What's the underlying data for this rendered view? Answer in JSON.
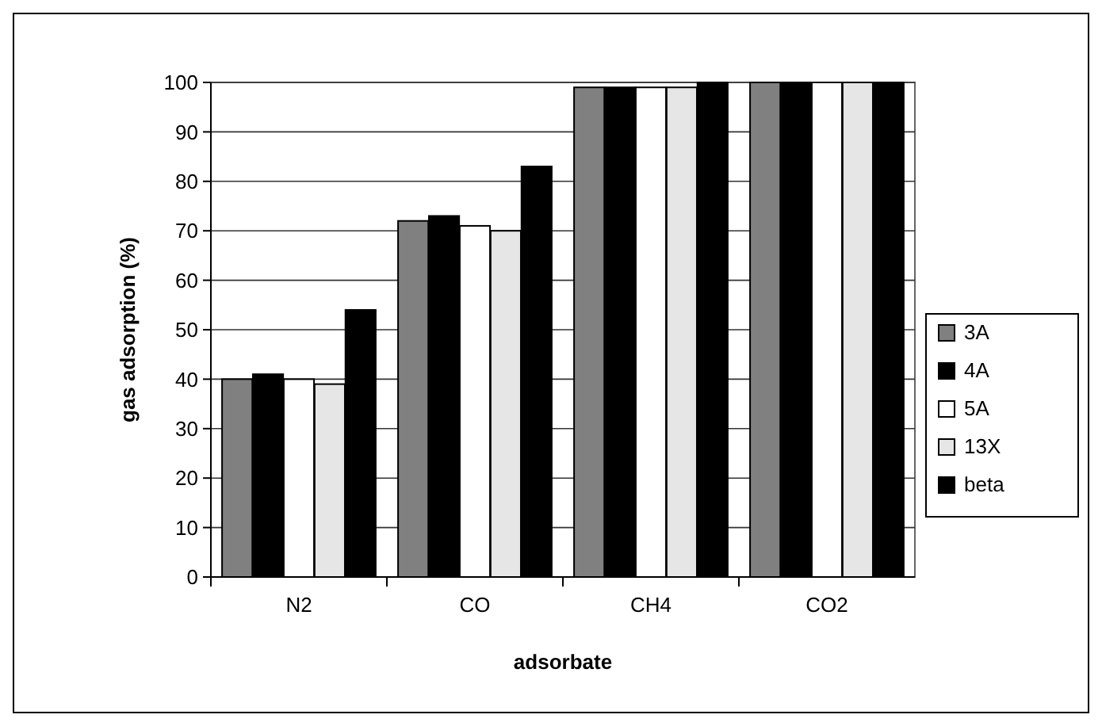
{
  "chart_data": {
    "type": "bar",
    "xlabel": "adsorbate",
    "ylabel": "gas adsorption (%)",
    "categories": [
      "N2",
      "CO",
      "CH4",
      "CO2"
    ],
    "series": [
      {
        "name": "3A",
        "color": "#808080",
        "values": [
          40,
          72,
          99,
          100
        ]
      },
      {
        "name": "4A",
        "color": "#000000",
        "values": [
          41,
          73,
          99,
          100
        ]
      },
      {
        "name": "5A",
        "color": "#ffffff",
        "values": [
          40,
          71,
          99,
          100
        ]
      },
      {
        "name": "13X",
        "color": "#e6e6e6",
        "values": [
          39,
          70,
          99,
          100
        ]
      },
      {
        "name": "beta",
        "color": "#000000",
        "values": [
          54,
          83,
          100,
          100
        ]
      }
    ],
    "ylim": [
      0,
      100
    ],
    "yticks": [
      0,
      10,
      20,
      30,
      40,
      50,
      60,
      70,
      80,
      90,
      100
    ],
    "grid": "y",
    "legend": "right"
  }
}
